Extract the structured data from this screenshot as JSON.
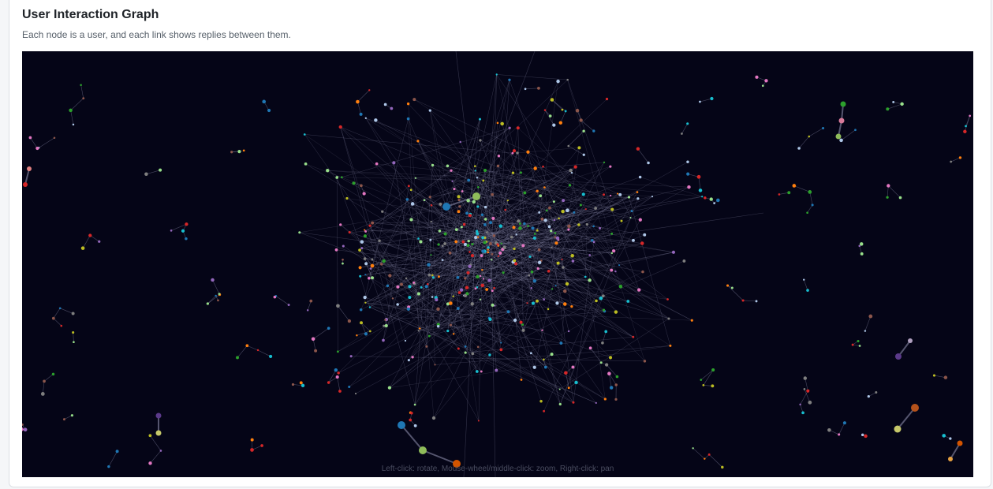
{
  "header": {
    "title": "User Interaction Graph",
    "subtitle": "Each node is a user, and each link shows replies between them."
  },
  "graph": {
    "controls_hint": "Left-click: rotate, Mouse-wheel/middle-click: zoom, Right-click: pan",
    "background_color": "#050517",
    "link_color": "#8a8aa8",
    "node_palette": [
      "#1f77b4",
      "#ff7f0e",
      "#2ca02c",
      "#d62728",
      "#9467bd",
      "#8c564b",
      "#e377c2",
      "#7f7f7f",
      "#bcbd22",
      "#17becf",
      "#aec7e8",
      "#98df8a"
    ]
  }
}
